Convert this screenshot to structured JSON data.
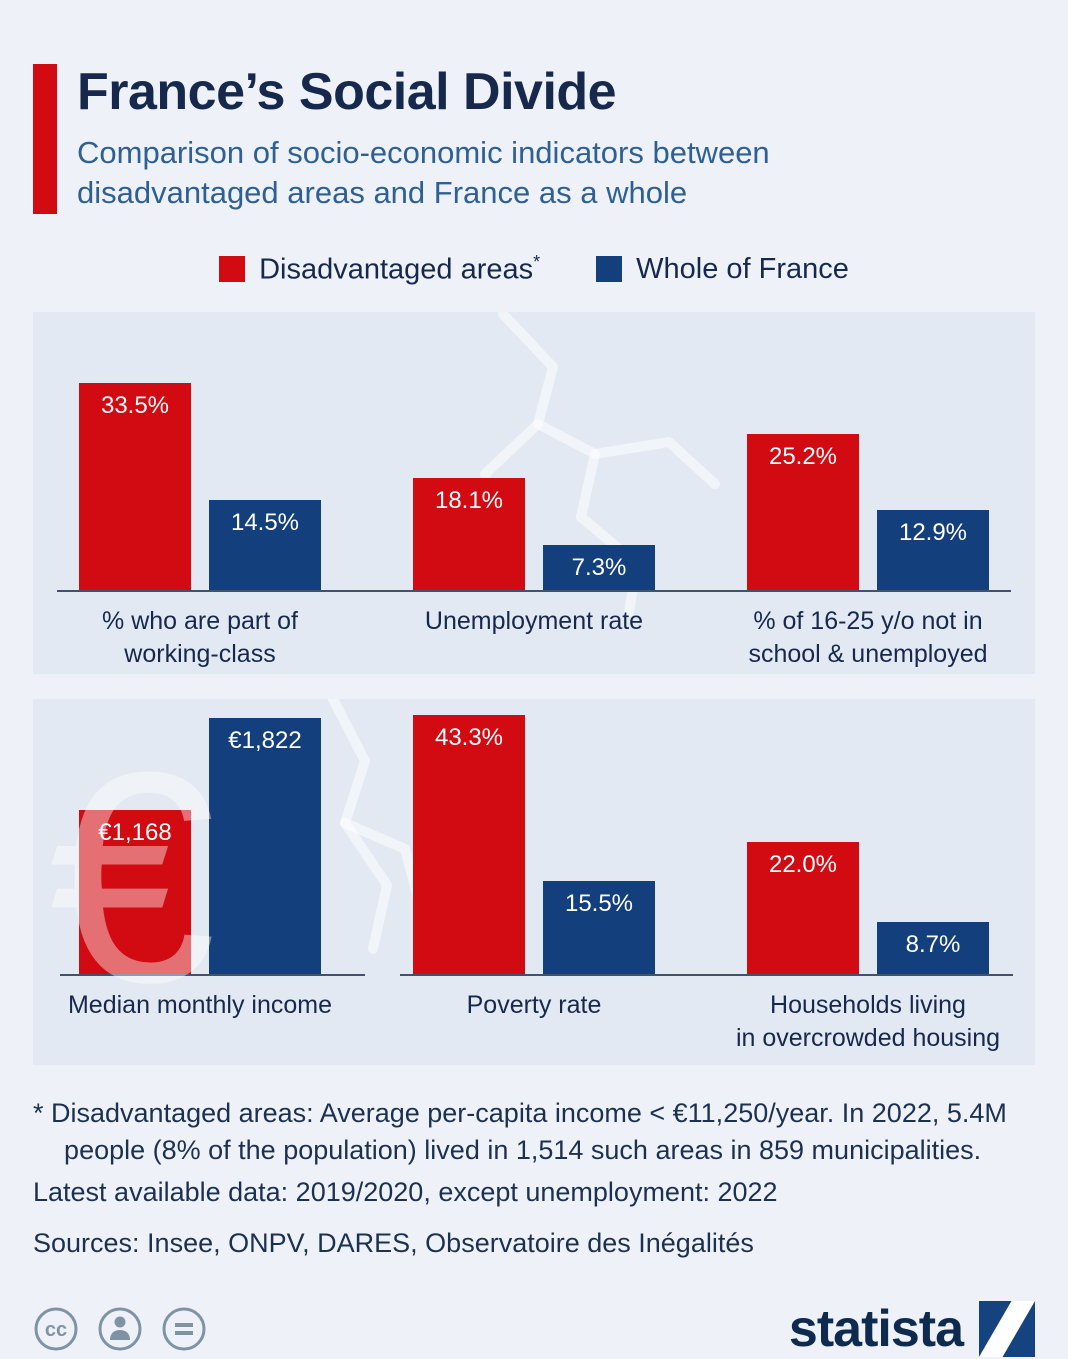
{
  "header": {
    "title": "France’s Social Divide",
    "subtitle": "Comparison of socio-economic indicators between\ndisadvantaged areas and France as a whole"
  },
  "colors": {
    "disadvantaged": "#d20a11",
    "france": "#143f7d",
    "accent": "#d20a11"
  },
  "legend": [
    {
      "label": "Disadvantaged areas",
      "sup": "*",
      "color": "#d20a11"
    },
    {
      "label": "Whole of France",
      "sup": "",
      "color": "#143f7d"
    }
  ],
  "chart_data": {
    "type": "bar",
    "title": "France’s Social Divide",
    "series_names": [
      "Disadvantaged areas",
      "Whole of France"
    ],
    "legend_position": "top",
    "panels": [
      {
        "groups": [
          {
            "label": "% who are part of\nworking-class",
            "unit": "%",
            "bars": [
              {
                "series": "Disadvantaged areas",
                "value": 33.5,
                "display": "33.5%"
              },
              {
                "series": "Whole of France",
                "value": 14.5,
                "display": "14.5%"
              }
            ]
          },
          {
            "label": "Unemployment rate",
            "unit": "%",
            "bars": [
              {
                "series": "Disadvantaged areas",
                "value": 18.1,
                "display": "18.1%"
              },
              {
                "series": "Whole of France",
                "value": 7.3,
                "display": "7.3%"
              }
            ]
          },
          {
            "label": "% of 16-25 y/o not in\nschool & unemployed",
            "unit": "%",
            "bars": [
              {
                "series": "Disadvantaged areas",
                "value": 25.2,
                "display": "25.2%"
              },
              {
                "series": "Whole of France",
                "value": 12.9,
                "display": "12.9%"
              }
            ]
          }
        ]
      },
      {
        "groups": [
          {
            "label": "Median monthly income",
            "unit": "EUR",
            "bars": [
              {
                "series": "Disadvantaged areas",
                "value": 1168,
                "display": "€1,168"
              },
              {
                "series": "Whole of France",
                "value": 1822,
                "display": "€1,822"
              }
            ]
          },
          {
            "label": "Poverty rate",
            "unit": "%",
            "bars": [
              {
                "series": "Disadvantaged areas",
                "value": 43.3,
                "display": "43.3%"
              },
              {
                "series": "Whole of France",
                "value": 15.5,
                "display": "15.5%"
              }
            ]
          },
          {
            "label": "Households living\nin overcrowded housing",
            "unit": "%",
            "bars": [
              {
                "series": "Disadvantaged areas",
                "value": 22.0,
                "display": "22.0%"
              },
              {
                "series": "Whole of France",
                "value": 8.7,
                "display": "8.7%"
              }
            ]
          }
        ]
      }
    ]
  },
  "footnotes": {
    "note": "* Disadvantaged areas: Average per-capita income < €11,250/year. In 2022, 5.4M\npeople (8% of the population) lived in 1,514 such areas in 859 municipalities.",
    "latest": "Latest available data: 2019/2020, except unemployment: 2022",
    "sources": "Sources: Insee, ONPV, DARES, Observatoire des Inégalités"
  },
  "branding": {
    "logo_text": "statista",
    "watermark": "€"
  }
}
